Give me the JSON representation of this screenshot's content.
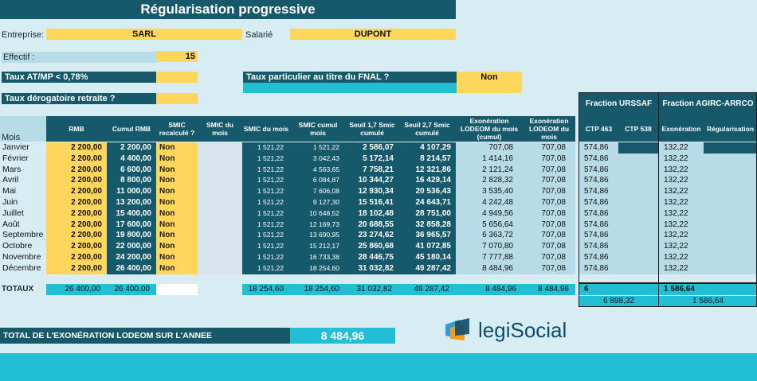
{
  "title": "Régularisation progressive",
  "header": {
    "entreprise_label": "Entreprise:",
    "entreprise_value": "SARL",
    "salarie_label": "Salarié",
    "salarie_value": "DUPONT",
    "effectif_label": "Effectif :",
    "effectif_value": "15",
    "taux_atmp_label": "Taux AT/MP < 0,78%",
    "fnal_label": "Taux particulier au titre du FNAL ?",
    "fnal_value": "Non",
    "taux_derog_label": "Taux dérogatoire retraite ?"
  },
  "groups": {
    "urssaf": "Fraction URSSAF",
    "agirc": "Fraction AGIRC-ARRCO"
  },
  "columns": {
    "mois": "Mois",
    "rmb": "RMB",
    "cumul_rmb": "Cumul RMB",
    "smic_recalc": "SMIC recalculé ?",
    "smic_du_mois_light": "SMIC du mois",
    "smic_du_mois": "SMIC du mois",
    "smic_cumul": "SMIC cumul mois",
    "seuil17": "Seuil 1,7 Smic cumulé",
    "seuil27": "Seuil 2,7 Smic cumulé",
    "exo_cumul": "Exonération LODEOM du mois (cumul)",
    "exo_mois": "Exonération LODEOM du mois",
    "ctp463": "CTP 463",
    "ctp538": "CTP 538",
    "exoneration": "Exonération",
    "regularisation": "Régularisation"
  },
  "rows": [
    {
      "mois": "Janvier",
      "rmb": "2 200,00",
      "cumul": "2 200,00",
      "recalc": "Non",
      "smic": "1 521,22",
      "smic_cumul": "1 521,22",
      "s17": "2 586,07",
      "s27": "4 107,29",
      "exo_cumul": "707,08",
      "exo": "707,08",
      "ctp463": "574,86",
      "exoneration": "132,22"
    },
    {
      "mois": "Février",
      "rmb": "2 200,00",
      "cumul": "4 400,00",
      "recalc": "Non",
      "smic": "1 521,22",
      "smic_cumul": "3 042,43",
      "s17": "5 172,14",
      "s27": "8 214,57",
      "exo_cumul": "1 414,16",
      "exo": "707,08",
      "ctp463": "574,86",
      "exoneration": "132,22"
    },
    {
      "mois": "Mars",
      "rmb": "2 200,00",
      "cumul": "6 600,00",
      "recalc": "Non",
      "smic": "1 521,22",
      "smic_cumul": "4 563,65",
      "s17": "7 758,21",
      "s27": "12 321,86",
      "exo_cumul": "2 121,24",
      "exo": "707,08",
      "ctp463": "574,86",
      "exoneration": "132,22"
    },
    {
      "mois": "Avril",
      "rmb": "2 200,00",
      "cumul": "8 800,00",
      "recalc": "Non",
      "smic": "1 521,22",
      "smic_cumul": "6 084,87",
      "s17": "10 344,27",
      "s27": "16 429,14",
      "exo_cumul": "2 828,32",
      "exo": "707,08",
      "ctp463": "574,86",
      "exoneration": "132,22"
    },
    {
      "mois": "Mai",
      "rmb": "2 200,00",
      "cumul": "11 000,00",
      "recalc": "Non",
      "smic": "1 521,22",
      "smic_cumul": "7 606,08",
      "s17": "12 930,34",
      "s27": "20 536,43",
      "exo_cumul": "3 535,40",
      "exo": "707,08",
      "ctp463": "574,86",
      "exoneration": "132,22"
    },
    {
      "mois": "Juin",
      "rmb": "2 200,00",
      "cumul": "13 200,00",
      "recalc": "Non",
      "smic": "1 521,22",
      "smic_cumul": "9 127,30",
      "s17": "15 516,41",
      "s27": "24 643,71",
      "exo_cumul": "4 242,48",
      "exo": "707,08",
      "ctp463": "574,86",
      "exoneration": "132,22"
    },
    {
      "mois": "Juillet",
      "rmb": "2 200,00",
      "cumul": "15 400,00",
      "recalc": "Non",
      "smic": "1 521,22",
      "smic_cumul": "10 648,52",
      "s17": "18 102,48",
      "s27": "28 751,00",
      "exo_cumul": "4 949,56",
      "exo": "707,08",
      "ctp463": "574,86",
      "exoneration": "132,22"
    },
    {
      "mois": "Août",
      "rmb": "2 200,00",
      "cumul": "17 600,00",
      "recalc": "Non",
      "smic": "1 521,22",
      "smic_cumul": "12 169,73",
      "s17": "20 688,55",
      "s27": "32 858,28",
      "exo_cumul": "5 656,64",
      "exo": "707,08",
      "ctp463": "574,86",
      "exoneration": "132,22"
    },
    {
      "mois": "Septembre",
      "rmb": "2 200,00",
      "cumul": "19 800,00",
      "recalc": "Non",
      "smic": "1 521,22",
      "smic_cumul": "13 690,95",
      "s17": "23 274,62",
      "s27": "36 965,57",
      "exo_cumul": "6 363,72",
      "exo": "707,08",
      "ctp463": "574,86",
      "exoneration": "132,22"
    },
    {
      "mois": "Octobre",
      "rmb": "2 200,00",
      "cumul": "22 000,00",
      "recalc": "Non",
      "smic": "1 521,22",
      "smic_cumul": "15 212,17",
      "s17": "25 860,68",
      "s27": "41 072,85",
      "exo_cumul": "7 070,80",
      "exo": "707,08",
      "ctp463": "574,86",
      "exoneration": "132,22"
    },
    {
      "mois": "Novembre",
      "rmb": "2 200,00",
      "cumul": "24 200,00",
      "recalc": "Non",
      "smic": "1 521,22",
      "smic_cumul": "16 733,38",
      "s17": "28 446,75",
      "s27": "45 180,14",
      "exo_cumul": "7 777,88",
      "exo": "707,08",
      "ctp463": "574,86",
      "exoneration": "132,22"
    },
    {
      "mois": "Décembre",
      "rmb": "2 200,00",
      "cumul": "26 400,00",
      "recalc": "Non",
      "smic": "1 521,22",
      "smic_cumul": "18 254,60",
      "s17": "31 032,82",
      "s27": "49 287,42",
      "exo_cumul": "8 484,96",
      "exo": "707,08",
      "ctp463": "574,86",
      "exoneration": "132,22"
    }
  ],
  "totals": {
    "label": "TOTAUX",
    "rmb": "26 400,00",
    "cumul": "26 400,00",
    "smic": "18 254,60",
    "smic_cumul": "18 254,60",
    "s17": "31 032,82",
    "s27": "49 287,42",
    "exo_cumul": "8 484,96",
    "exo": "8 484,96",
    "ctp463": "6 898,32",
    "ctp_sum": "6 898,32",
    "exoneration": "1 586,64",
    "agirc_sum": "1 586,64"
  },
  "summary": {
    "label": "TOTAL DE L'EXONÉRATION LODEOM SUR L'ANNEE",
    "value": "8 484,96"
  },
  "logo": {
    "text": "legiSocial",
    "icon": "legisocial-logo-icon"
  }
}
